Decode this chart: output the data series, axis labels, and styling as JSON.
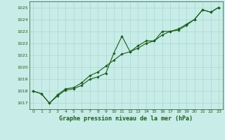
{
  "title": "Graphe pression niveau de la mer (hPa)",
  "background_color": "#c8ece8",
  "grid_color": "#a8d8d0",
  "line_color": "#1a5c1a",
  "marker_color": "#1a5c1a",
  "x_ticks": [
    0,
    1,
    2,
    3,
    4,
    5,
    6,
    7,
    8,
    9,
    10,
    11,
    12,
    13,
    14,
    15,
    16,
    17,
    18,
    19,
    20,
    21,
    22,
    23
  ],
  "y_ticks": [
    1017,
    1018,
    1019,
    1020,
    1021,
    1022,
    1023,
    1024,
    1025
  ],
  "ylim": [
    1016.5,
    1025.5
  ],
  "xlim": [
    -0.5,
    23.5
  ],
  "series1_x": [
    0,
    1,
    2,
    3,
    4,
    5,
    6,
    7,
    8,
    9,
    10,
    11,
    12,
    13,
    14,
    15,
    16,
    17,
    18,
    19,
    20,
    21,
    22,
    23
  ],
  "series1_y": [
    1018.0,
    1017.8,
    1017.0,
    1017.6,
    1018.1,
    1018.2,
    1018.5,
    1019.0,
    1019.2,
    1019.5,
    1021.2,
    1022.6,
    1021.3,
    1021.8,
    1022.2,
    1022.2,
    1023.0,
    1023.0,
    1023.1,
    1023.5,
    1024.0,
    1024.8,
    1024.6,
    1025.0
  ],
  "series2_x": [
    0,
    1,
    2,
    3,
    4,
    5,
    6,
    7,
    8,
    9,
    10,
    11,
    12,
    13,
    14,
    15,
    16,
    17,
    18,
    19,
    20,
    21,
    22,
    23
  ],
  "series2_y": [
    1018.0,
    1017.8,
    1017.0,
    1017.7,
    1018.2,
    1018.3,
    1018.7,
    1019.3,
    1019.6,
    1020.1,
    1020.6,
    1021.1,
    1021.3,
    1021.6,
    1022.0,
    1022.2,
    1022.7,
    1023.0,
    1023.2,
    1023.6,
    1024.0,
    1024.8,
    1024.6,
    1025.0
  ],
  "tick_fontsize": 4.5,
  "xlabel_fontsize": 6.0,
  "linewidth": 0.8,
  "markersize": 1.8
}
